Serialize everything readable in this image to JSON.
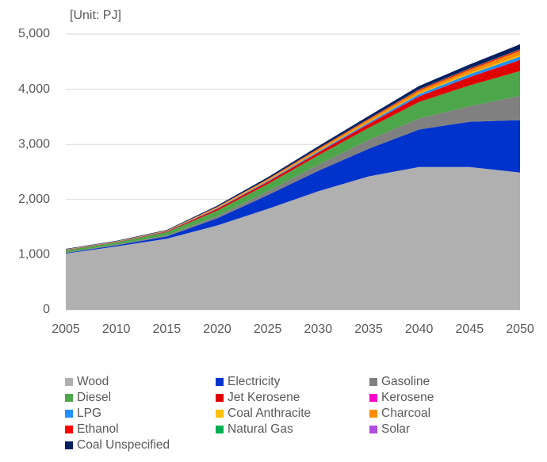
{
  "chart_data": {
    "type": "stacked_area",
    "annotation": "[Unit: PJ]",
    "x": [
      2005,
      2010,
      2015,
      2020,
      2025,
      2030,
      2035,
      2040,
      2045,
      2050
    ],
    "xlim": [
      2005,
      2050
    ],
    "xticks": [
      2005,
      2010,
      2015,
      2020,
      2025,
      2030,
      2035,
      2040,
      2045,
      2050
    ],
    "ylim": [
      0,
      5000
    ],
    "yticks": [
      0,
      {
        "value": 1000,
        "label": "1,000"
      },
      {
        "value": 2000,
        "label": "2,000"
      },
      {
        "value": 3000,
        "label": "3,000"
      },
      {
        "value": 4000,
        "label": "4,000"
      },
      {
        "value": 5000,
        "label": "5,000"
      }
    ],
    "grid": true,
    "series": [
      {
        "name": "Wood",
        "color": "#b0b0b0",
        "values": [
          1020,
          1150,
          1290,
          1530,
          1830,
          2150,
          2420,
          2590,
          2590,
          2490
        ]
      },
      {
        "name": "Electricity",
        "color": "#0033cc",
        "values": [
          10,
          20,
          40,
          130,
          250,
          370,
          500,
          680,
          820,
          950
        ]
      },
      {
        "name": "Gasoline",
        "color": "#808080",
        "values": [
          10,
          15,
          20,
          40,
          70,
          110,
          160,
          200,
          280,
          440
        ]
      },
      {
        "name": "Diesel",
        "color": "#4ea64a",
        "values": [
          40,
          40,
          60,
          100,
          130,
          170,
          220,
          300,
          380,
          450
        ]
      },
      {
        "name": "Jet Kerosene",
        "color": "#e00000",
        "values": [
          5,
          5,
          10,
          30,
          40,
          50,
          70,
          100,
          150,
          200
        ]
      },
      {
        "name": "Kerosene",
        "color": "#ff00cc",
        "values": [
          2,
          2,
          2,
          2,
          2,
          2,
          2,
          2,
          2,
          2
        ]
      },
      {
        "name": "LPG",
        "color": "#1e90ff",
        "values": [
          3,
          3,
          5,
          10,
          15,
          20,
          25,
          40,
          50,
          60
        ]
      },
      {
        "name": "Coal Anthracite",
        "color": "#ffc000",
        "values": [
          2,
          2,
          3,
          5,
          8,
          10,
          12,
          15,
          20,
          25
        ]
      },
      {
        "name": "Charcoal",
        "color": "#ff8c00",
        "values": [
          5,
          5,
          8,
          15,
          20,
          30,
          40,
          50,
          60,
          80
        ]
      },
      {
        "name": "Ethanol",
        "color": "#ff0000",
        "values": [
          0,
          0,
          0,
          5,
          5,
          10,
          10,
          15,
          20,
          20
        ]
      },
      {
        "name": "Natural Gas",
        "color": "#00b050",
        "values": [
          0,
          0,
          0,
          2,
          2,
          3,
          3,
          5,
          5,
          5
        ]
      },
      {
        "name": "Solar",
        "color": "#b04ce0",
        "values": [
          0,
          0,
          0,
          1,
          1,
          1,
          2,
          2,
          2,
          3
        ]
      },
      {
        "name": "Coal Unspecified",
        "color": "#002060",
        "values": [
          10,
          10,
          12,
          20,
          30,
          40,
          50,
          60,
          70,
          90
        ]
      }
    ]
  }
}
